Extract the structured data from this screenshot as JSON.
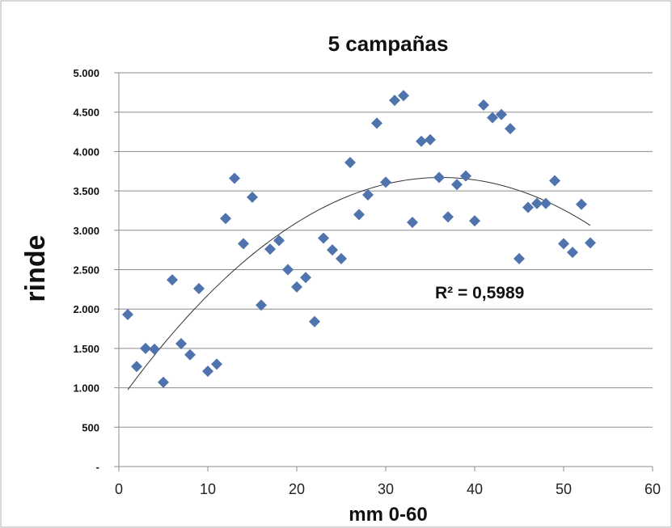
{
  "chart_data": {
    "type": "scatter",
    "title": "5 campañas",
    "xlabel": "mm 0-60",
    "ylabel": "rinde",
    "xlim": [
      0,
      60
    ],
    "ylim": [
      0,
      5000
    ],
    "x_ticks": [
      "0",
      "10",
      "20",
      "30",
      "40",
      "50",
      "60"
    ],
    "y_ticks": [
      "-",
      "500",
      "1.000",
      "1.500",
      "2.000",
      "2.500",
      "3.000",
      "3.500",
      "4.000",
      "4.500",
      "5.000"
    ],
    "grid": true,
    "point_color": "#4f73ad",
    "trendline": {
      "type": "polynomial-2",
      "label": "R² = 0,5989",
      "x_range": [
        1,
        53
      ],
      "coefficients": [
        -2.17,
        157.3,
        820
      ]
    },
    "points": [
      {
        "x": 1,
        "y": 1930
      },
      {
        "x": 2,
        "y": 1270
      },
      {
        "x": 3,
        "y": 1500
      },
      {
        "x": 4,
        "y": 1490
      },
      {
        "x": 5,
        "y": 1070
      },
      {
        "x": 6,
        "y": 2370
      },
      {
        "x": 7,
        "y": 1560
      },
      {
        "x": 8,
        "y": 1420
      },
      {
        "x": 9,
        "y": 2260
      },
      {
        "x": 10,
        "y": 1210
      },
      {
        "x": 11,
        "y": 1300
      },
      {
        "x": 12,
        "y": 3150
      },
      {
        "x": 13,
        "y": 3660
      },
      {
        "x": 14,
        "y": 2830
      },
      {
        "x": 15,
        "y": 3420
      },
      {
        "x": 16,
        "y": 2050
      },
      {
        "x": 17,
        "y": 2760
      },
      {
        "x": 18,
        "y": 2870
      },
      {
        "x": 19,
        "y": 2500
      },
      {
        "x": 20,
        "y": 2280
      },
      {
        "x": 21,
        "y": 2400
      },
      {
        "x": 22,
        "y": 1840
      },
      {
        "x": 23,
        "y": 2900
      },
      {
        "x": 24,
        "y": 2750
      },
      {
        "x": 25,
        "y": 2640
      },
      {
        "x": 26,
        "y": 3860
      },
      {
        "x": 27,
        "y": 3200
      },
      {
        "x": 28,
        "y": 3450
      },
      {
        "x": 29,
        "y": 4360
      },
      {
        "x": 30,
        "y": 3610
      },
      {
        "x": 31,
        "y": 4650
      },
      {
        "x": 32,
        "y": 4710
      },
      {
        "x": 33,
        "y": 3100
      },
      {
        "x": 34,
        "y": 4130
      },
      {
        "x": 35,
        "y": 4150
      },
      {
        "x": 36,
        "y": 3670
      },
      {
        "x": 37,
        "y": 3170
      },
      {
        "x": 38,
        "y": 3580
      },
      {
        "x": 39,
        "y": 3690
      },
      {
        "x": 40,
        "y": 3120
      },
      {
        "x": 41,
        "y": 4590
      },
      {
        "x": 42,
        "y": 4430
      },
      {
        "x": 43,
        "y": 4470
      },
      {
        "x": 44,
        "y": 4290
      },
      {
        "x": 45,
        "y": 2640
      },
      {
        "x": 46,
        "y": 3290
      },
      {
        "x": 47,
        "y": 3340
      },
      {
        "x": 48,
        "y": 3340
      },
      {
        "x": 49,
        "y": 3630
      },
      {
        "x": 50,
        "y": 2830
      },
      {
        "x": 51,
        "y": 2720
      },
      {
        "x": 52,
        "y": 3330
      },
      {
        "x": 53,
        "y": 2840
      }
    ]
  }
}
